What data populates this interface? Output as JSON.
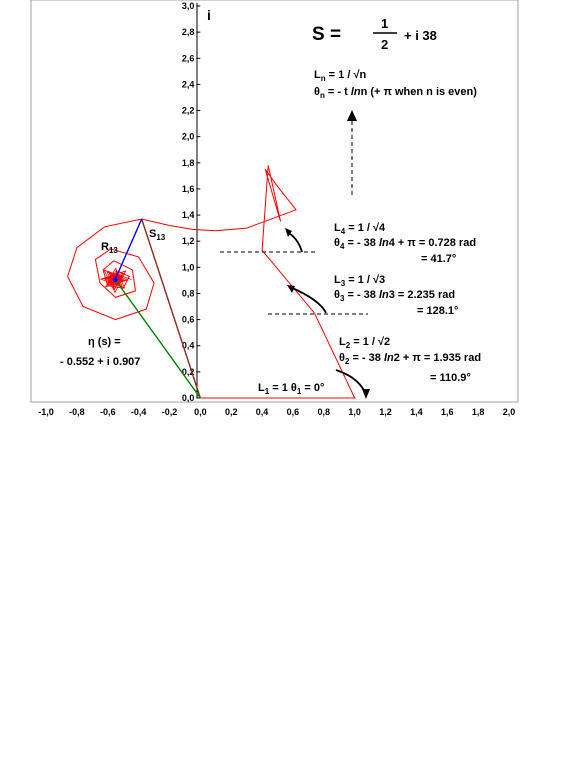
{
  "chart_data": {
    "type": "line",
    "title": "",
    "xlabel": "",
    "ylabel": "i",
    "xlim": [
      -1.0,
      2.0
    ],
    "ylim": [
      0.0,
      3.0
    ],
    "x_ticks": [
      "-1,0",
      "-0,8",
      "-0,6",
      "-0,4",
      "-0,2",
      "0,0",
      "0,2",
      "0,4",
      "0,6",
      "0,8",
      "1,0",
      "1,2",
      "1,4",
      "1,6",
      "1,8",
      "2,0"
    ],
    "y_ticks": [
      "0,0",
      "0,2",
      "0,4",
      "0,6",
      "0,8",
      "1,0",
      "1,2",
      "1,4",
      "1,6",
      "1,8",
      "2,0",
      "2,2",
      "2,4",
      "2,6",
      "2,8",
      "3,0"
    ],
    "grid": false,
    "series": [
      {
        "color": "#ff0000",
        "x": [
          0.0,
          1.0,
          0.74,
          0.4,
          0.44,
          0.52,
          0.42,
          0.5,
          0.62,
          0.3,
          0.1,
          -0.05,
          -0.2,
          -0.38,
          -0.62,
          -0.8,
          -0.86,
          -0.76,
          -0.55,
          -0.35,
          -0.3,
          -0.4,
          -0.58,
          -0.68,
          -0.65,
          -0.55,
          -0.42,
          -0.44,
          -0.56,
          -0.63,
          -0.6,
          -0.5,
          -0.46,
          -0.53,
          -0.57,
          -0.54
        ],
        "y": [
          0.0,
          0.0,
          0.65,
          1.13,
          1.78,
          1.35,
          1.75,
          1.62,
          1.44,
          1.3,
          1.28,
          1.29,
          1.32,
          1.37,
          1.31,
          1.15,
          0.93,
          0.7,
          0.6,
          0.68,
          0.88,
          1.08,
          1.14,
          1.06,
          0.88,
          0.77,
          0.82,
          0.98,
          1.05,
          0.98,
          0.86,
          0.84,
          0.93,
          0.97,
          0.92,
          0.9
        ]
      }
    ],
    "vectors": [
      {
        "name": "S13",
        "color": "#8b2a1a",
        "from": [
          0.0,
          0.0
        ],
        "to": [
          -0.38,
          1.37
        ]
      },
      {
        "name": "R13",
        "color": "#0000ff",
        "from": [
          -0.38,
          1.37
        ],
        "to": [
          -0.552,
          0.907
        ]
      },
      {
        "name": "eta",
        "color": "#008000",
        "from": [
          0.0,
          0.0
        ],
        "to": [
          -0.552,
          0.907
        ]
      }
    ]
  },
  "annotations": {
    "s_prefix": "S =",
    "s_num": "1",
    "s_den": "2",
    "s_suffix": "+ i 38",
    "ln_line": "L",
    "ln_sub": "n",
    "ln_rest": " = 1 / √n",
    "thn_line": "θ",
    "thn_sub": "n",
    "thn_rest_a": " = - t ",
    "thn_ln": "ln",
    "thn_rest_b": "n  (+ π when n is even)",
    "l4_a": "L",
    "l4_sub": "4",
    "l4_b": " = 1 / √4",
    "t4_a": "θ",
    "t4_sub": "4",
    "t4_b": " = - 38 ",
    "t4_ln": "ln",
    "t4_c": "4 + π = 0.728  rad",
    "t4_deg": "= 41.7°",
    "l3_a": "L",
    "l3_sub": "3",
    "l3_b": " = 1 / √3",
    "t3_a": "θ",
    "t3_sub": "3",
    "t3_b": " = - 38 ",
    "t3_ln": "ln",
    "t3_c": "3 = 2.235  rad",
    "t3_deg": "= 128.1°",
    "l2_a": "L",
    "l2_sub": "2",
    "l2_b": " = 1 / √2",
    "t2_a": "θ",
    "t2_sub": "2",
    "t2_b": " = - 38 ",
    "t2_ln": "ln",
    "t2_c": "2 + π = 1.935  rad",
    "t2_deg": "= 110.9°",
    "l1_a": "L",
    "l1_sub": "1",
    "l1_b": " = 1    θ",
    "l1_sub2": "1",
    "l1_c": " = 0°",
    "s13_a": "S",
    "s13_sub": "13",
    "r13_a": "R",
    "r13_sub": "13",
    "eta_1": "η (s) =",
    "eta_2": "- 0.552 + i 0.907"
  }
}
